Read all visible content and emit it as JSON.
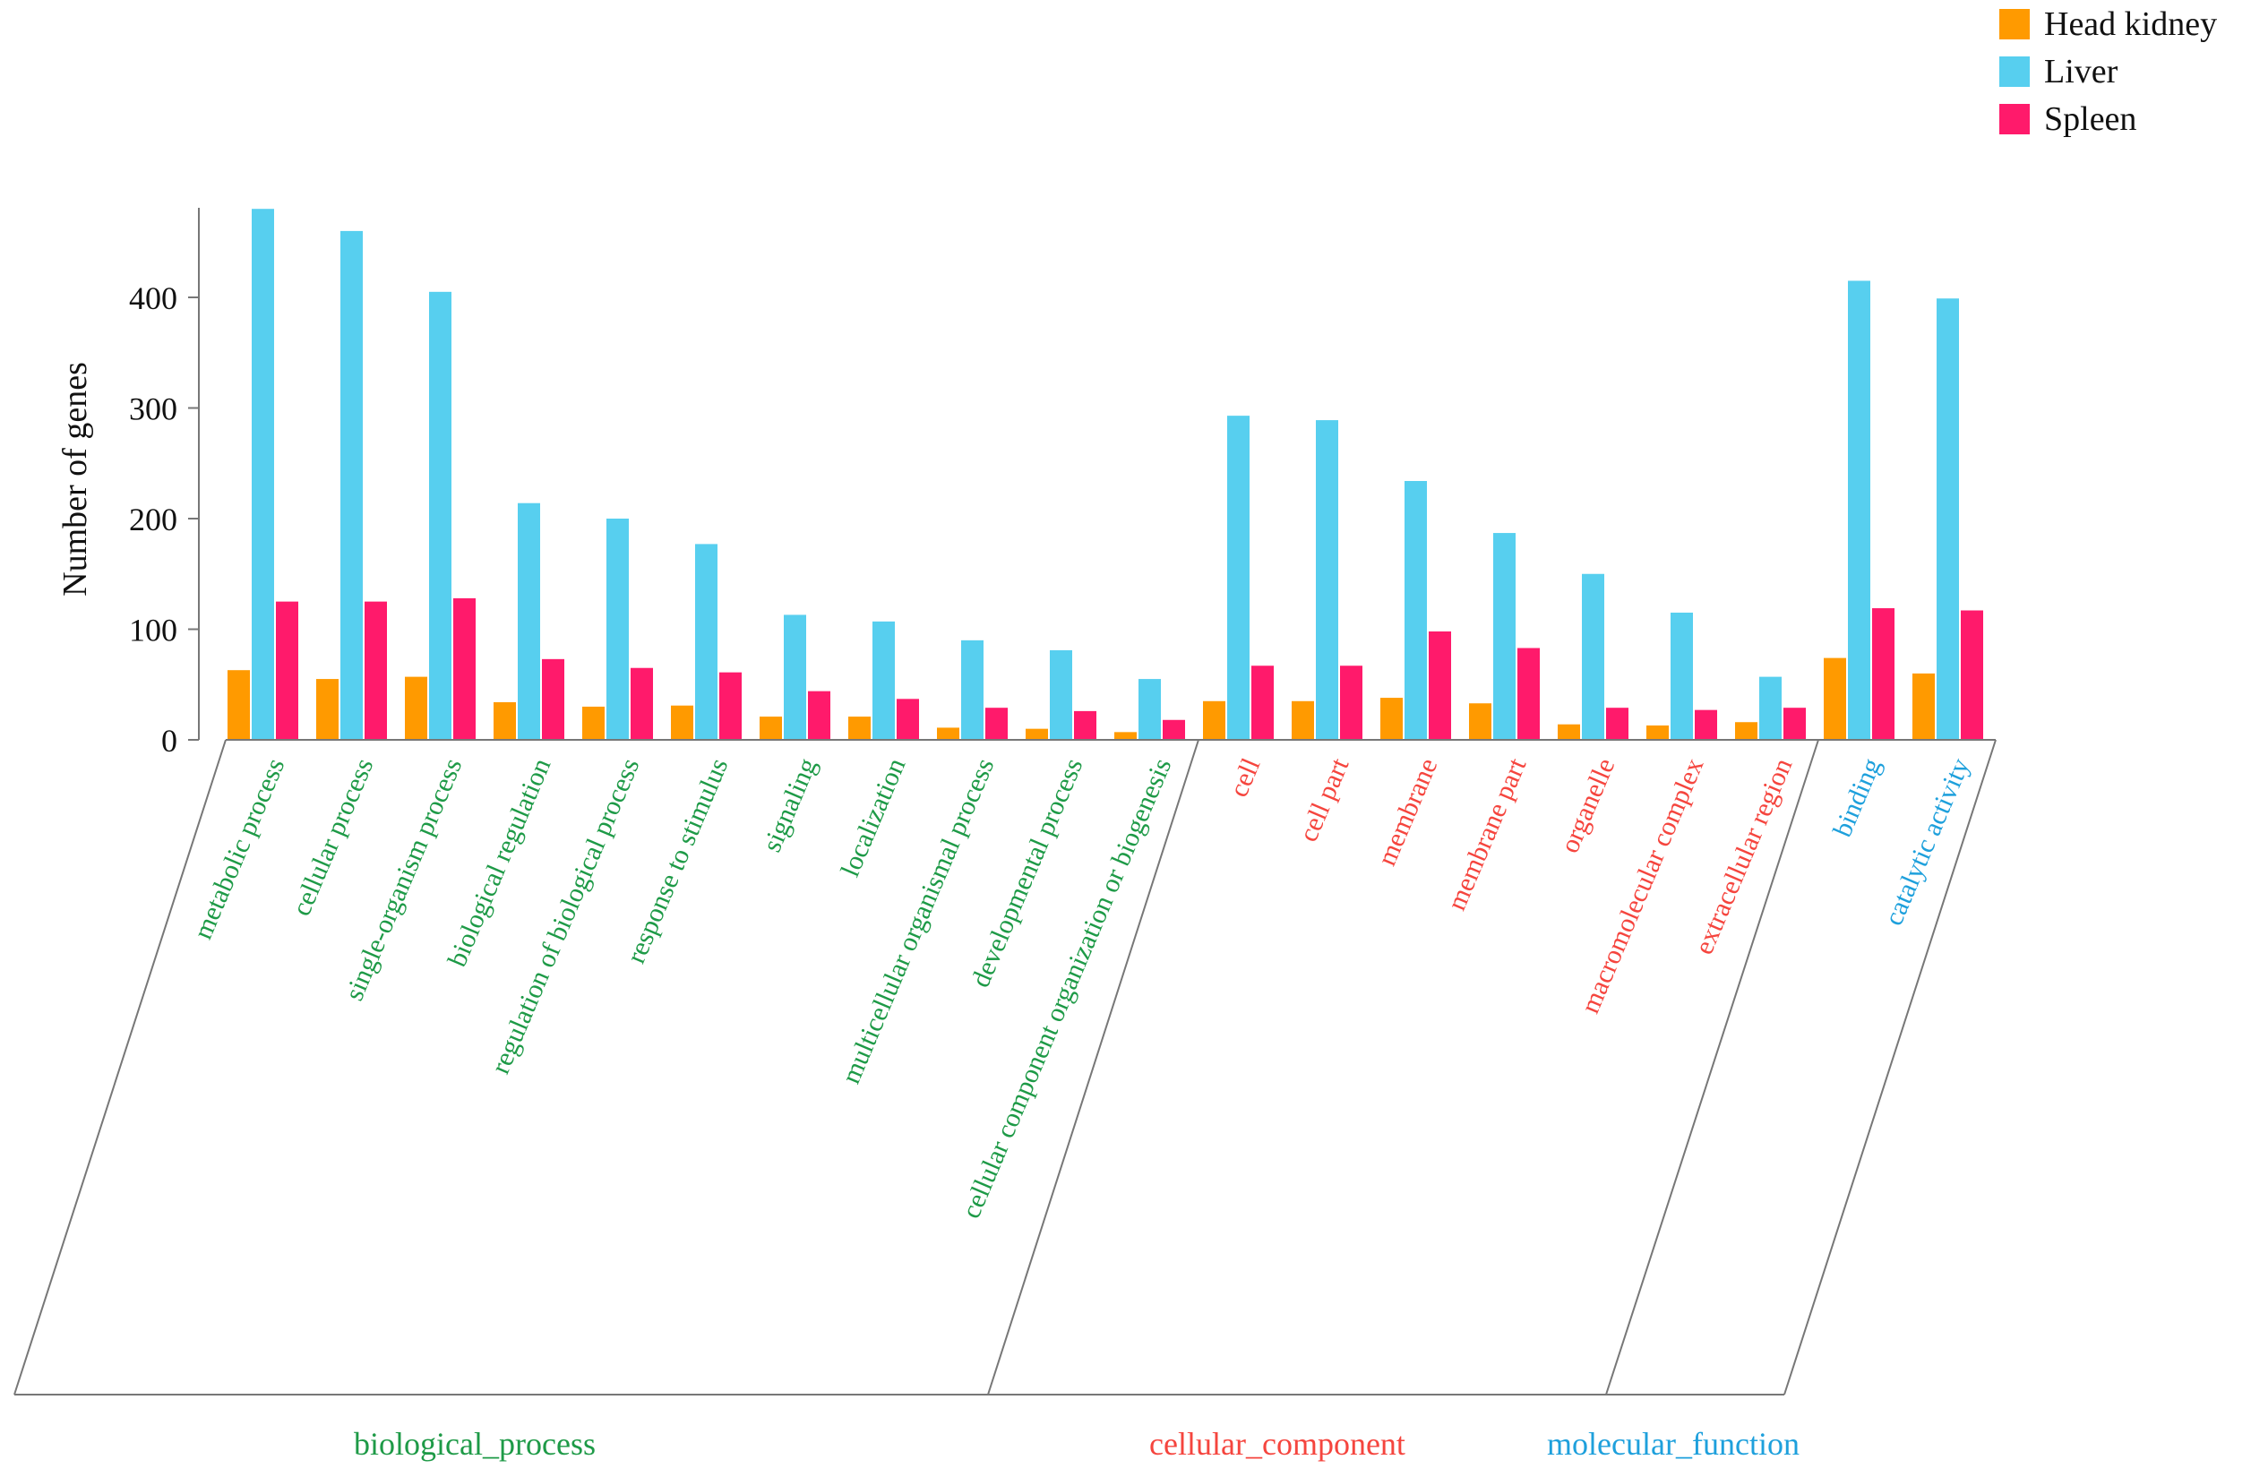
{
  "chart_data": {
    "type": "bar",
    "ylabel": "Number of genes",
    "ylim": [
      0,
      480
    ],
    "yticks": [
      0,
      100,
      200,
      300,
      400
    ],
    "series": [
      {
        "name": "Head kidney",
        "color": "#ff9a00"
      },
      {
        "name": "Liver",
        "color": "#57cfef"
      },
      {
        "name": "Spleen",
        "color": "#ff1a6b"
      }
    ],
    "groups": [
      {
        "name": "biological_process",
        "color": "#1e9a47",
        "categories": [
          {
            "label": "metabolic process",
            "values": [
              63,
              480,
              125
            ]
          },
          {
            "label": "cellular process",
            "values": [
              55,
              460,
              125
            ]
          },
          {
            "label": "single-organism process",
            "values": [
              57,
              405,
              128
            ]
          },
          {
            "label": "biological regulation",
            "values": [
              34,
              214,
              73
            ]
          },
          {
            "label": "regulation of biological process",
            "values": [
              30,
              200,
              65
            ]
          },
          {
            "label": "response to stimulus",
            "values": [
              31,
              177,
              61
            ]
          },
          {
            "label": "signaling",
            "values": [
              21,
              113,
              44
            ]
          },
          {
            "label": "localization",
            "values": [
              21,
              107,
              37
            ]
          },
          {
            "label": "multicellular organismal process",
            "values": [
              11,
              90,
              29
            ]
          },
          {
            "label": "developmental process",
            "values": [
              10,
              81,
              26
            ]
          },
          {
            "label": "cellular component organization or biogenesis",
            "values": [
              7,
              55,
              18
            ]
          }
        ]
      },
      {
        "name": "cellular_component",
        "color": "#f5453e",
        "categories": [
          {
            "label": "cell",
            "values": [
              35,
              293,
              67
            ]
          },
          {
            "label": "cell part",
            "values": [
              35,
              289,
              67
            ]
          },
          {
            "label": "membrane",
            "values": [
              38,
              234,
              98
            ]
          },
          {
            "label": "membrane part",
            "values": [
              33,
              187,
              83
            ]
          },
          {
            "label": "organelle",
            "values": [
              14,
              150,
              29
            ]
          },
          {
            "label": "macromolecular complex",
            "values": [
              13,
              115,
              27
            ]
          },
          {
            "label": "extracellular region",
            "values": [
              16,
              57,
              29
            ]
          }
        ]
      },
      {
        "name": "molecular_function",
        "color": "#1ea0dc",
        "categories": [
          {
            "label": "binding",
            "values": [
              74,
              415,
              119
            ]
          },
          {
            "label": "catalytic activity",
            "values": [
              60,
              399,
              117
            ]
          }
        ]
      }
    ]
  }
}
